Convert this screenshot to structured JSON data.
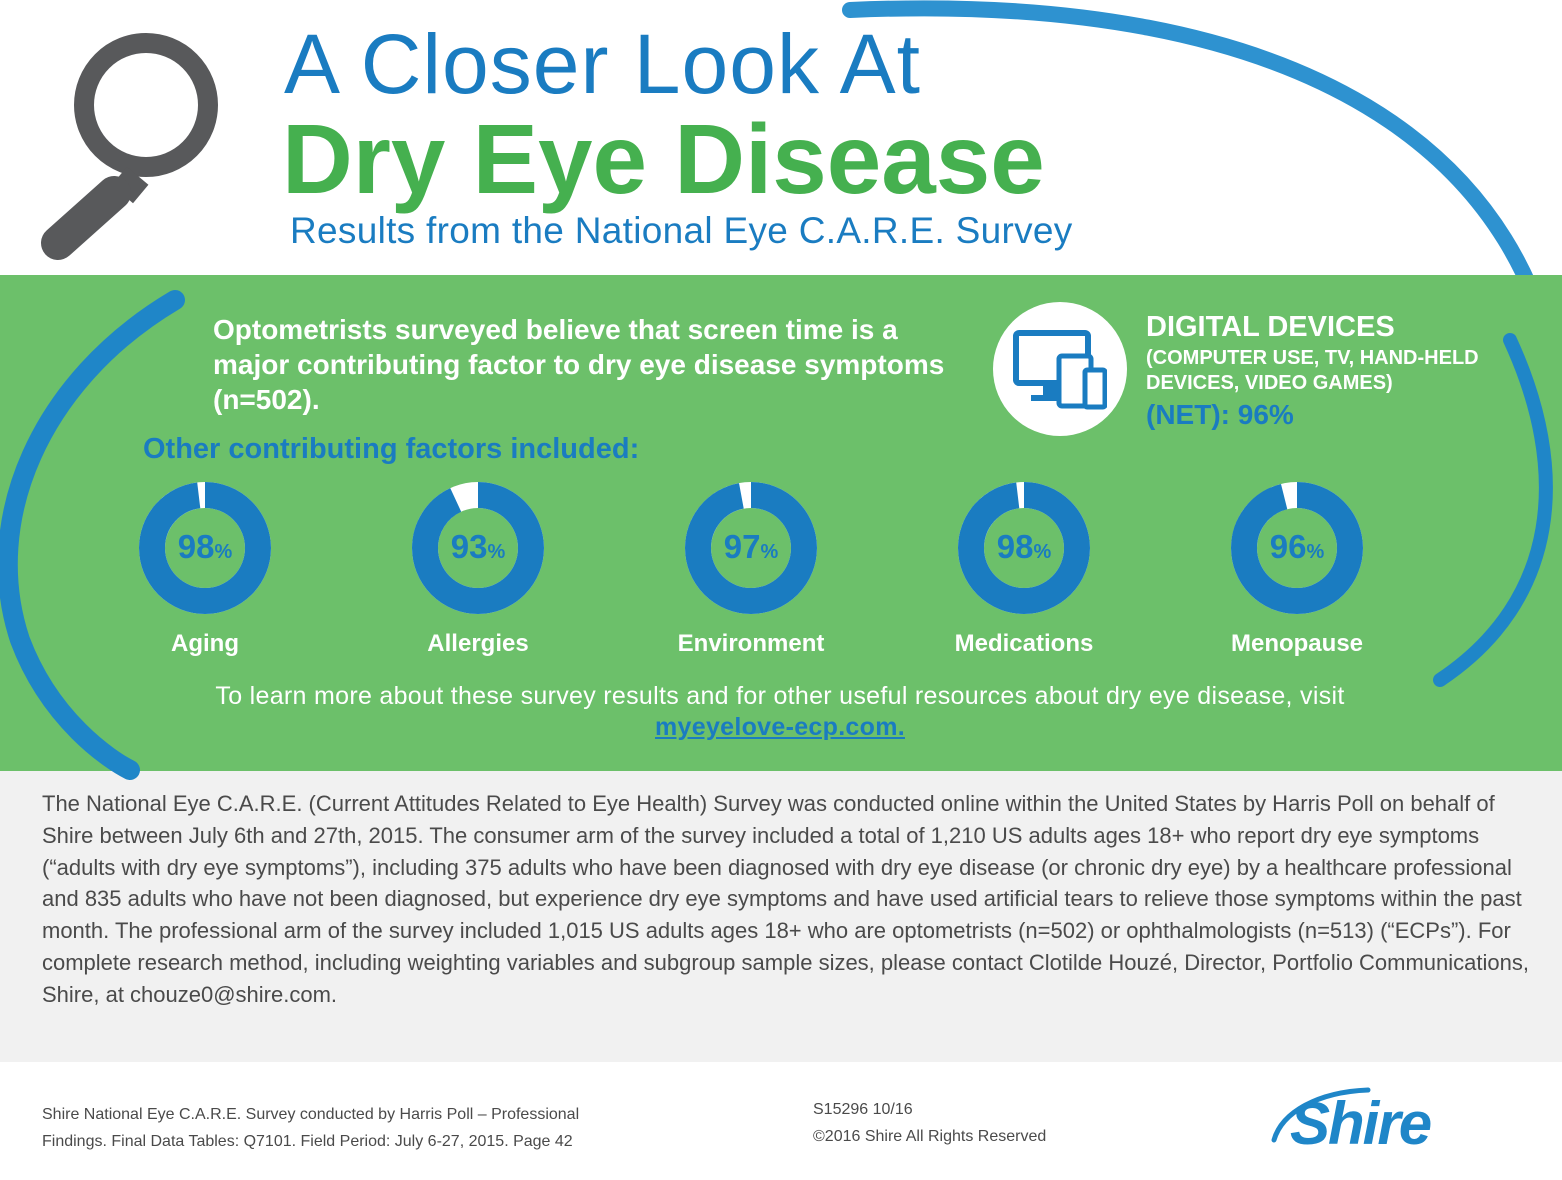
{
  "header": {
    "title_line1": "A Closer Look At",
    "title_line2": "Dry Eye Disease",
    "subtitle": "Results from the National Eye C.A.R.E. Survey",
    "icon": "magnifying-glass-icon"
  },
  "findings": {
    "screen_time_statement": "Optometrists surveyed believe that screen time is a major contributing factor to dry eye disease symptoms (n=502).",
    "digital_devices": {
      "icon": "devices-icon",
      "title": "DIGITAL DEVICES",
      "subtitle": "(COMPUTER USE, TV, HAND-HELD DEVICES, VIDEO GAMES)",
      "net_value": "(NET): 96%"
    },
    "other_factors_heading": "Other contributing factors included:",
    "percent_sign": "%",
    "factors": [
      {
        "label": "Aging",
        "value": 98
      },
      {
        "label": "Allergies",
        "value": 93
      },
      {
        "label": "Environment",
        "value": 97
      },
      {
        "label": "Medications",
        "value": 98
      },
      {
        "label": "Menopause",
        "value": 96
      }
    ],
    "learn_more_text": "To learn more about these survey results and for other useful resources about dry eye disease, visit",
    "learn_more_link": "myeyelove-ecp.com."
  },
  "methodology": {
    "text": "The National Eye C.A.R.E. (Current Attitudes Related to Eye Health) Survey was conducted online within the United States by Harris Poll on behalf of Shire between July 6th and 27th, 2015. The consumer arm of the survey included a total of 1,210 US adults ages 18+ who report dry eye symptoms (“adults with dry eye symptoms”), including 375 adults who have been diagnosed with dry eye disease (or chronic dry eye) by a healthcare professional and 835 adults who have not been diagnosed, but experience dry eye symptoms and have used artificial tears to relieve those symptoms within the past month. The professional arm of the survey included 1,015 US adults ages 18+ who are optometrists (n=502) or ophthalmologists (n=513) (“ECPs”). For complete research method, including weighting variables and subgroup sample sizes, please contact Clotilde Houzé, Director, Portfolio Communications, Shire, at chouze0@shire.com."
  },
  "footer": {
    "source_line1": "Shire National Eye C.A.R.E. Survey conducted by Harris Poll – Professional",
    "source_line2": "Findings. Final Data Tables: Q7101. Field Period: July 6-27, 2015. Page 42",
    "code": "S15296 10/16",
    "copyright": "©2016 Shire All Rights Reserved",
    "logo_text": "Shire"
  },
  "colors": {
    "blue": "#1a7cc1",
    "green": "#45b04f",
    "panel_green": "#6cc06a",
    "gray_bg": "#f1f1f1",
    "text_gray": "#4a4a4a"
  }
}
